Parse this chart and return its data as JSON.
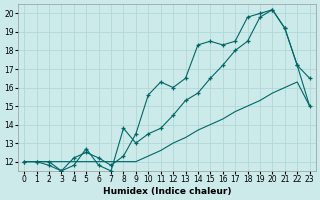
{
  "xlabel": "Humidex (Indice chaleur)",
  "bg_color": "#cdeaea",
  "line_color": "#006666",
  "grid_color": "#b0d8d8",
  "xlim": [
    -0.5,
    23.5
  ],
  "ylim": [
    11.5,
    20.5
  ],
  "yticks": [
    12,
    13,
    14,
    15,
    16,
    17,
    18,
    19,
    20
  ],
  "xticks": [
    0,
    1,
    2,
    3,
    4,
    5,
    6,
    7,
    8,
    9,
    10,
    11,
    12,
    13,
    14,
    15,
    16,
    17,
    18,
    19,
    20,
    21,
    22,
    23
  ],
  "series1_x": [
    0,
    1,
    2,
    3,
    4,
    5,
    6,
    7,
    8,
    9,
    10,
    11,
    12,
    13,
    14,
    15,
    16,
    17,
    18,
    19,
    20,
    21,
    22,
    23
  ],
  "series1_y": [
    12.0,
    12.0,
    12.0,
    12.0,
    12.0,
    12.0,
    12.0,
    12.0,
    12.0,
    12.0,
    12.3,
    12.6,
    13.0,
    13.3,
    13.7,
    14.0,
    14.3,
    14.7,
    15.0,
    15.3,
    15.7,
    16.0,
    16.3,
    15.0
  ],
  "series2_x": [
    0,
    1,
    2,
    3,
    4,
    5,
    6,
    7,
    8,
    9,
    10,
    11,
    12,
    13,
    14,
    15,
    16,
    17,
    18,
    19,
    20,
    21,
    22,
    23
  ],
  "series2_y": [
    12.0,
    12.0,
    11.8,
    11.5,
    12.2,
    12.5,
    12.2,
    11.8,
    12.3,
    13.5,
    15.6,
    16.3,
    16.0,
    16.5,
    18.3,
    18.5,
    18.3,
    18.5,
    19.8,
    20.0,
    20.2,
    19.2,
    17.2,
    16.5
  ],
  "series3_x": [
    0,
    1,
    2,
    3,
    4,
    5,
    6,
    7,
    8,
    9,
    10,
    11,
    12,
    13,
    14,
    15,
    16,
    17,
    18,
    19,
    20,
    21,
    22,
    23
  ],
  "series3_y": [
    12.0,
    12.0,
    12.0,
    11.5,
    11.8,
    12.7,
    11.8,
    11.5,
    13.8,
    13.0,
    13.5,
    13.8,
    14.5,
    15.3,
    15.7,
    16.5,
    17.2,
    18.0,
    18.5,
    19.8,
    20.2,
    19.2,
    17.2,
    15.0
  ],
  "marker_size": 3.5,
  "linewidth": 0.8
}
